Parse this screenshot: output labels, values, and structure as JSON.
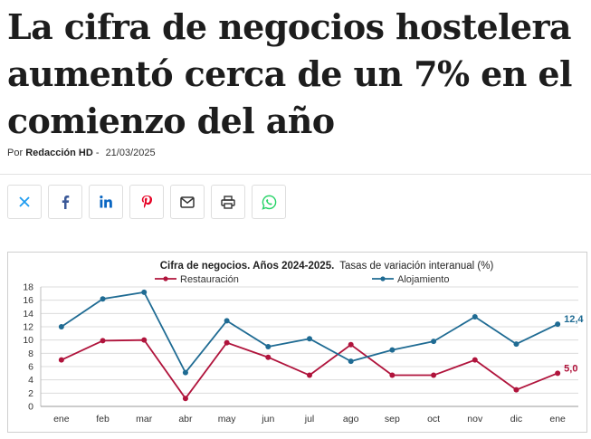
{
  "article": {
    "headline": "La cifra de negocios hostelera aumentó cerca de un 7% en el comienzo del año",
    "byline_prefix": "Por",
    "author": "Redacción HD",
    "byline_separator": "-",
    "date": "21/03/2025"
  },
  "share": {
    "buttons": [
      {
        "name": "x",
        "icon": "x-icon",
        "color": "#1d9bf0"
      },
      {
        "name": "facebook",
        "icon": "facebook-icon",
        "color": "#3b5998"
      },
      {
        "name": "linkedin",
        "icon": "linkedin-icon",
        "color": "#0a66c2"
      },
      {
        "name": "pinterest",
        "icon": "pinterest-icon",
        "color": "#e60023"
      },
      {
        "name": "email",
        "icon": "envelope-icon",
        "color": "#333333"
      },
      {
        "name": "print",
        "icon": "printer-icon",
        "color": "#333333"
      },
      {
        "name": "whatsapp",
        "icon": "whatsapp-icon",
        "color": "#25d366"
      }
    ]
  },
  "chart_data": {
    "type": "line",
    "title_bold": "Cifra de negocios.  Años 2024-2025.",
    "title_rest": "Tasas de variación interanual (%)",
    "categories": [
      "ene",
      "feb",
      "mar",
      "abr",
      "may",
      "jun",
      "jul",
      "ago",
      "sep",
      "oct",
      "nov",
      "dic",
      "ene"
    ],
    "ylim": [
      0,
      18
    ],
    "yticks": [
      0,
      2,
      4,
      6,
      8,
      10,
      12,
      14,
      16,
      18
    ],
    "grid": true,
    "legend_position": "top",
    "series": [
      {
        "name": "Restauración",
        "color": "#b0143c",
        "values": [
          7.0,
          9.9,
          10.0,
          1.2,
          9.6,
          7.4,
          4.7,
          9.3,
          4.7,
          4.7,
          7.0,
          2.5,
          5.0
        ],
        "last_label": "5,0"
      },
      {
        "name": "Alojamiento",
        "color": "#1f6b93",
        "values": [
          12.0,
          16.2,
          17.2,
          5.1,
          12.9,
          9.0,
          10.2,
          6.8,
          8.5,
          9.8,
          13.5,
          9.4,
          12.4
        ],
        "last_label": "12,4"
      }
    ]
  }
}
